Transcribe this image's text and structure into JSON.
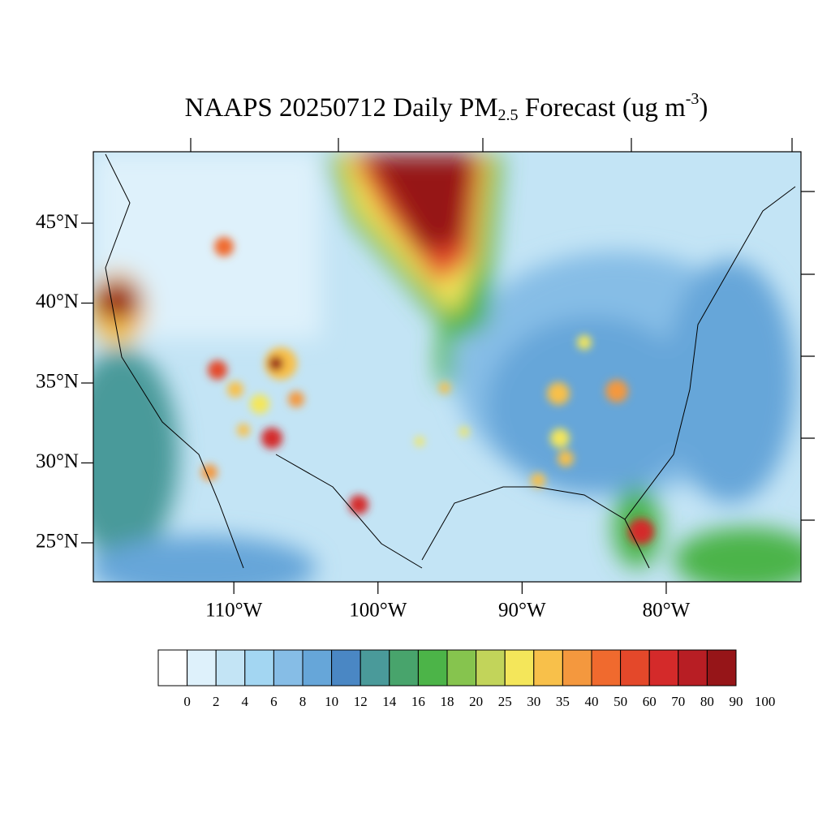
{
  "title": {
    "main": "NAAPS 20250712 Daily PM",
    "sub": "2.5",
    "rest": " Forecast (ug m",
    "sup": "-3",
    "end": ")"
  },
  "map": {
    "lonlim": [
      -119.75,
      -70.65
    ],
    "latlim": [
      49.47,
      22.56
    ],
    "lat_ticks": [
      {
        "value": 45,
        "label": "45°N"
      },
      {
        "value": 40,
        "label": "40°N"
      },
      {
        "value": 35,
        "label": "35°N"
      },
      {
        "value": 30,
        "label": "30°N"
      },
      {
        "value": 25,
        "label": "25°N"
      }
    ],
    "lon_ticks": [
      {
        "value": -110,
        "label": "110°W"
      },
      {
        "value": -100,
        "label": "100°W"
      },
      {
        "value": -90,
        "label": "90°W"
      },
      {
        "value": -80,
        "label": "80°W"
      }
    ]
  },
  "colorbar": {
    "levels": [
      0,
      2,
      4,
      6,
      8,
      10,
      12,
      14,
      16,
      18,
      20,
      25,
      30,
      35,
      40,
      50,
      60,
      70,
      80,
      90,
      100
    ],
    "colors": [
      "#ffffff",
      "#def1fb",
      "#c3e4f5",
      "#a3d6f2",
      "#86bde6",
      "#66a6d9",
      "#4a87c4",
      "#4a9a9a",
      "#48a46c",
      "#4cb448",
      "#86c44e",
      "#c2d45a",
      "#f4e65a",
      "#f8c04a",
      "#f4983e",
      "#f06a2e",
      "#e4482a",
      "#d42a2a",
      "#b81e24",
      "#961518"
    ]
  }
}
